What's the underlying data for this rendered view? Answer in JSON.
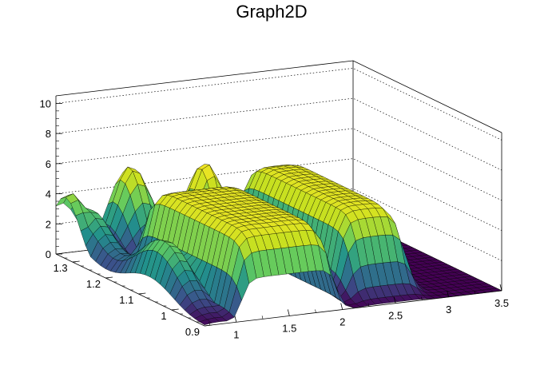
{
  "chart_data": {
    "type": "surface",
    "title": "Graph2D",
    "xlabel": "",
    "ylabel": "",
    "zlabel": "",
    "xlim": [
      0.7,
      3.5
    ],
    "ylim": [
      0.9,
      1.35
    ],
    "zlim": [
      0,
      10.5
    ],
    "x_ticks": [
      "1",
      "1.5",
      "2",
      "2.5",
      "3",
      "3.5"
    ],
    "y_ticks": [
      "0.9",
      "1",
      "1.1",
      "1.2",
      "1.3"
    ],
    "z_ticks": [
      "0",
      "2",
      "4",
      "6",
      "8",
      "10"
    ],
    "grid": true,
    "colormap": "viridis",
    "features": [
      {
        "kind": "plateau",
        "x": [
          1.05,
          1.95
        ],
        "y": [
          0.9,
          1.22
        ],
        "z": 5.6
      },
      {
        "kind": "plateau",
        "x": [
          2.2,
          2.8
        ],
        "y": [
          0.95,
          1.3
        ],
        "z": 5.5
      },
      {
        "kind": "hump",
        "x": 1.8,
        "y": 1.25,
        "z": 6.2
      },
      {
        "kind": "hump",
        "x": 0.75,
        "y": 1.32,
        "z": 4.3
      },
      {
        "kind": "hump",
        "x": 1.35,
        "y": 1.33,
        "z": 5.5
      },
      {
        "kind": "ridge",
        "x": [
          0.72,
          1.0
        ],
        "y": [
          0.95,
          1.35
        ],
        "z": 4.0
      }
    ]
  }
}
